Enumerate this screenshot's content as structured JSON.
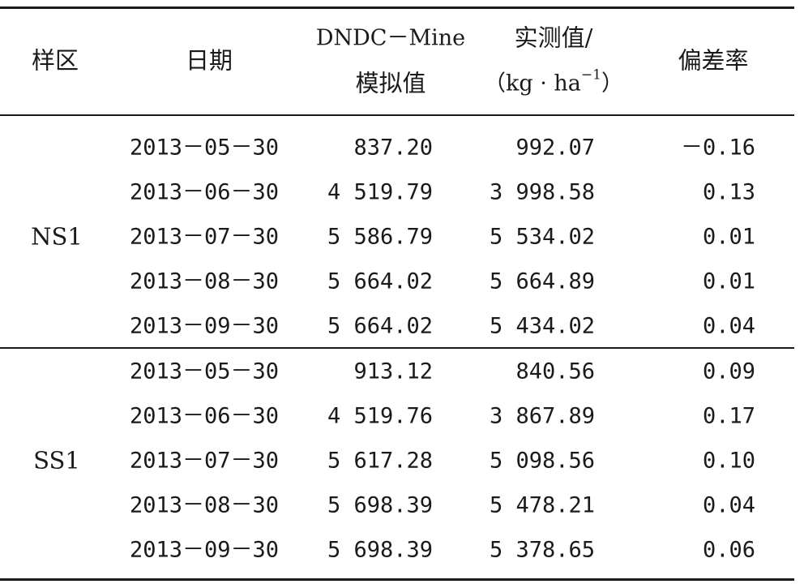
{
  "table": {
    "headers": {
      "site": "样区",
      "date": "日期",
      "simulated_line1": "DNDC－Mine",
      "simulated_line2": "模拟值",
      "measured_line1": "实测值/",
      "measured_line2_prefix": "（kg · ha",
      "measured_line2_sup": "−1",
      "measured_line2_suffix": "）",
      "deviation": "偏差率"
    },
    "groups": [
      {
        "site": "NS1",
        "rows": [
          {
            "date": "2013－05－30",
            "simulated": "837.20",
            "measured": "992.07",
            "deviation": "－0.16"
          },
          {
            "date": "2013－06－30",
            "simulated": "4 519.79",
            "measured": "3 998.58",
            "deviation": "0.13"
          },
          {
            "date": "2013－07－30",
            "simulated": "5 586.79",
            "measured": "5 534.02",
            "deviation": "0.01"
          },
          {
            "date": "2013－08－30",
            "simulated": "5 664.02",
            "measured": "5 664.89",
            "deviation": "0.01"
          },
          {
            "date": "2013－09－30",
            "simulated": "5 664.02",
            "measured": "5 434.02",
            "deviation": "0.04"
          }
        ]
      },
      {
        "site": "SS1",
        "rows": [
          {
            "date": "2013－05－30",
            "simulated": "913.12",
            "measured": "840.56",
            "deviation": "0.09"
          },
          {
            "date": "2013－06－30",
            "simulated": "4 519.76",
            "measured": "3 867.89",
            "deviation": "0.17"
          },
          {
            "date": "2013－07－30",
            "simulated": "5 617.28",
            "measured": "5 098.56",
            "deviation": "0.10"
          },
          {
            "date": "2013－08－30",
            "simulated": "5 698.39",
            "measured": "5 478.21",
            "deviation": "0.04"
          },
          {
            "date": "2013－09－30",
            "simulated": "5 698.39",
            "measured": "5 378.65",
            "deviation": "0.06"
          }
        ]
      }
    ]
  }
}
